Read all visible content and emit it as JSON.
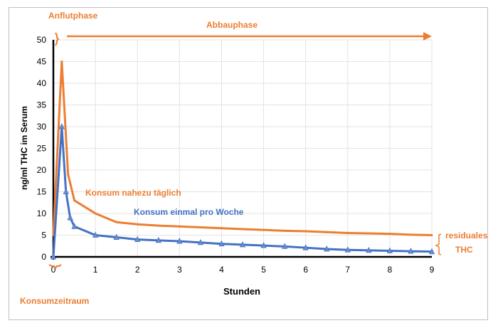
{
  "colors": {
    "orange": "#ed7d31",
    "blue": "#4472c4",
    "grid": "#e3e3e3",
    "axis": "#000000"
  },
  "chart_data": {
    "type": "line",
    "xlabel": "Stunden",
    "ylabel": "ng/ml THC im Serum",
    "xlim": [
      0,
      9
    ],
    "ylim": [
      0,
      50
    ],
    "x_ticks": [
      0,
      1,
      2,
      3,
      4,
      5,
      6,
      7,
      8,
      9
    ],
    "y_ticks": [
      0,
      5,
      10,
      15,
      20,
      25,
      30,
      35,
      40,
      45,
      50
    ],
    "grid": true,
    "series": [
      {
        "name": "Konsum nahezu täglich",
        "color": "#ed7d31",
        "x": [
          0,
          0.2,
          0.35,
          0.5,
          1,
          1.5,
          2,
          2.5,
          3,
          3.5,
          4,
          4.5,
          5,
          5.5,
          6,
          6.5,
          7,
          7.5,
          8,
          8.5,
          9
        ],
        "y": [
          5,
          45,
          19,
          13,
          10,
          8,
          7.5,
          7.2,
          7,
          6.8,
          6.6,
          6.4,
          6.2,
          6,
          5.9,
          5.7,
          5.5,
          5.4,
          5.3,
          5.1,
          5
        ]
      },
      {
        "name": "Konsum einmal pro Woche",
        "color": "#4472c4",
        "x": [
          0,
          0.2,
          0.3,
          0.4,
          0.5,
          1,
          1.5,
          2,
          2.5,
          3,
          3.5,
          4,
          4.5,
          5,
          5.5,
          6,
          6.5,
          7,
          7.5,
          8,
          8.5,
          9
        ],
        "y": [
          0,
          30,
          15,
          9,
          7,
          5,
          4.5,
          4,
          3.8,
          3.6,
          3.3,
          3,
          2.8,
          2.6,
          2.4,
          2.1,
          1.8,
          1.6,
          1.5,
          1.4,
          1.3,
          1.2
        ]
      }
    ],
    "annotations": {
      "anflutphase": "Anflutphase",
      "abbauphase": "Abbauphase",
      "konsumzeitraum": "Konsumzeitraum",
      "residuales_line1": "residuales",
      "residuales_line2": "THC"
    }
  }
}
